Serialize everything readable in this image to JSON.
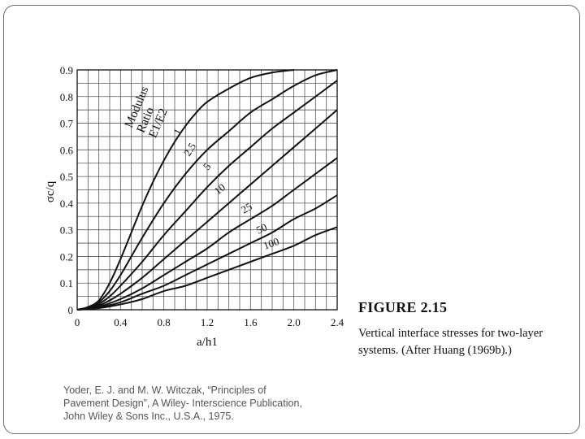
{
  "chart_data": {
    "type": "line",
    "xlabel": "a/h1",
    "ylabel": "σc/q",
    "xlim": [
      0,
      2.4
    ],
    "ylim": [
      0,
      0.9
    ],
    "x_ticks": [
      "0",
      "0.4",
      "0.8",
      "1.2",
      "1.6",
      "2.0",
      "2.4"
    ],
    "y_ticks": [
      "0",
      "0.1",
      "0.2",
      "0.3",
      "0.4",
      "0.5",
      "0.6",
      "0.7",
      "0.8",
      "0.9"
    ],
    "grid": true,
    "legend_title_lines": [
      "Modulus",
      "Ratio",
      "E1/E2"
    ],
    "series": [
      {
        "name": "1",
        "x": [
          0,
          0.1,
          0.2,
          0.3,
          0.4,
          0.5,
          0.6,
          0.7,
          0.8,
          0.9,
          1.0,
          1.1,
          1.2,
          1.4,
          1.6,
          1.8,
          2.0
        ],
        "y": [
          0,
          0.01,
          0.035,
          0.1,
          0.19,
          0.29,
          0.39,
          0.48,
          0.56,
          0.63,
          0.69,
          0.74,
          0.78,
          0.83,
          0.87,
          0.89,
          0.9
        ]
      },
      {
        "name": "2.5",
        "x": [
          0,
          0.1,
          0.2,
          0.3,
          0.4,
          0.5,
          0.6,
          0.8,
          1.0,
          1.2,
          1.4,
          1.6,
          1.8,
          2.0,
          2.2,
          2.4
        ],
        "y": [
          0,
          0.008,
          0.028,
          0.07,
          0.13,
          0.2,
          0.27,
          0.4,
          0.51,
          0.6,
          0.67,
          0.74,
          0.79,
          0.84,
          0.88,
          0.9
        ]
      },
      {
        "name": "5",
        "x": [
          0,
          0.1,
          0.2,
          0.3,
          0.4,
          0.6,
          0.8,
          1.0,
          1.2,
          1.4,
          1.6,
          1.8,
          2.0,
          2.2,
          2.4
        ],
        "y": [
          0,
          0.006,
          0.022,
          0.05,
          0.09,
          0.18,
          0.28,
          0.37,
          0.46,
          0.54,
          0.61,
          0.68,
          0.74,
          0.8,
          0.86
        ]
      },
      {
        "name": "10",
        "x": [
          0,
          0.1,
          0.2,
          0.3,
          0.4,
          0.6,
          0.8,
          1.0,
          1.2,
          1.4,
          1.6,
          1.8,
          2.0,
          2.2,
          2.4
        ],
        "y": [
          0,
          0.004,
          0.016,
          0.035,
          0.06,
          0.12,
          0.19,
          0.26,
          0.33,
          0.4,
          0.47,
          0.54,
          0.61,
          0.68,
          0.75
        ]
      },
      {
        "name": "25",
        "x": [
          0,
          0.2,
          0.4,
          0.6,
          0.8,
          1.0,
          1.2,
          1.4,
          1.6,
          1.8,
          2.0,
          2.2,
          2.4
        ],
        "y": [
          0,
          0.012,
          0.04,
          0.08,
          0.13,
          0.18,
          0.23,
          0.29,
          0.34,
          0.39,
          0.45,
          0.51,
          0.57
        ]
      },
      {
        "name": "50",
        "x": [
          0,
          0.2,
          0.4,
          0.6,
          0.8,
          1.0,
          1.2,
          1.4,
          1.6,
          1.8,
          2.0,
          2.2,
          2.4
        ],
        "y": [
          0,
          0.009,
          0.028,
          0.06,
          0.09,
          0.13,
          0.17,
          0.21,
          0.25,
          0.29,
          0.34,
          0.38,
          0.43
        ]
      },
      {
        "name": "100",
        "x": [
          0,
          0.2,
          0.4,
          0.6,
          0.8,
          1.0,
          1.2,
          1.4,
          1.6,
          1.8,
          2.0,
          2.2,
          2.4
        ],
        "y": [
          0,
          0.006,
          0.02,
          0.04,
          0.07,
          0.09,
          0.12,
          0.15,
          0.18,
          0.21,
          0.24,
          0.28,
          0.31
        ]
      }
    ]
  },
  "caption": {
    "figure_number": "FIGURE 2.15",
    "text": "Vertical interface stresses for two-layer systems. (After Huang (1969b).)"
  },
  "citation": "Yoder, E. J. and M. W. Witczak, “Principles of Pavement Design”, A Wiley- Interscience Publication, John Wiley & Sons Inc., U.S.A., 1975."
}
